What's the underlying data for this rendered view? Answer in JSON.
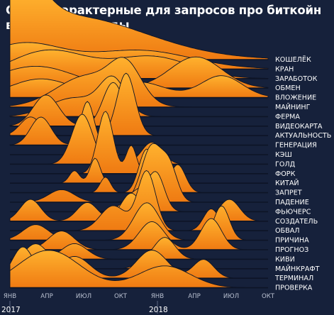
{
  "title_line1": "Слова, характерные для запросов про биткойн",
  "title_line2": "в разные периоды",
  "colors": {
    "background": "#16213b",
    "fill_top": "#ffb22e",
    "fill_bottom": "#ef7a12",
    "separator": "#0d1426",
    "text": "#ffffff"
  },
  "chart_data": {
    "type": "area",
    "subtype": "ridgeline",
    "x_ticks": [
      "ЯНВ",
      "АПР",
      "ИЮЛ",
      "ОКТ",
      "ЯНВ",
      "АПР",
      "ИЮЛ",
      "ОКТ"
    ],
    "year_labels": [
      {
        "label": "2017",
        "tick_index": 0
      },
      {
        "label": "2018",
        "tick_index": 4
      }
    ],
    "series": [
      {
        "name": "КОШЕЛЁК",
        "peaks": [
          [
            0.02,
            1.0,
            0.09
          ],
          [
            0.22,
            0.7,
            0.3
          ]
        ]
      },
      {
        "name": "КРАН",
        "peaks": [
          [
            0.05,
            0.4,
            0.15
          ],
          [
            0.5,
            0.3,
            0.2
          ]
        ]
      },
      {
        "name": "ЗАРАБОТОК",
        "peaks": [
          [
            0.15,
            0.45,
            0.15
          ],
          [
            0.55,
            0.35,
            0.15
          ]
        ]
      },
      {
        "name": "ОБМЕН",
        "peaks": [
          [
            0.1,
            0.35,
            0.15
          ],
          [
            0.72,
            0.5,
            0.1
          ]
        ]
      },
      {
        "name": "ВЛОЖЕНИЕ",
        "peaks": [
          [
            0.12,
            0.3,
            0.12
          ],
          [
            0.5,
            0.25,
            0.1
          ],
          [
            0.82,
            0.35,
            0.08
          ]
        ]
      },
      {
        "name": "МАЙНИНГ",
        "peaks": [
          [
            0.3,
            0.5,
            0.12
          ],
          [
            0.45,
            0.55,
            0.06
          ]
        ]
      },
      {
        "name": "ФЕРМА",
        "peaks": [
          [
            0.25,
            0.3,
            0.1
          ],
          [
            0.4,
            0.55,
            0.05
          ]
        ]
      },
      {
        "name": "ВИДЕОКАРТА",
        "peaks": [
          [
            0.14,
            0.5,
            0.05
          ],
          [
            0.4,
            0.7,
            0.04
          ]
        ]
      },
      {
        "name": "АКТУАЛЬНОСТЬ",
        "peaks": [
          [
            0.08,
            0.3,
            0.04
          ],
          [
            0.45,
            1.0,
            0.035
          ]
        ]
      },
      {
        "name": "ГЕНЕРАЦИЯ",
        "peaks": [
          [
            0.12,
            0.45,
            0.04
          ],
          [
            0.3,
            0.7,
            0.025
          ]
        ]
      },
      {
        "name": "КЭШ",
        "peaks": [
          [
            0.37,
            0.4,
            0.02
          ]
        ]
      },
      {
        "name": "ГОЛД",
        "peaks": [
          [
            0.28,
            0.8,
            0.04
          ],
          [
            0.55,
            0.35,
            0.04
          ]
        ]
      },
      {
        "name": "ФОРК",
        "peaks": [
          [
            0.37,
            1.0,
            0.03
          ],
          [
            0.47,
            0.45,
            0.02
          ]
        ]
      },
      {
        "name": "КИТАЙ",
        "peaks": [
          [
            0.25,
            0.2,
            0.02
          ],
          [
            0.33,
            0.4,
            0.02
          ],
          [
            0.55,
            0.5,
            0.02
          ]
        ]
      },
      {
        "name": "ЗАПРЕТ",
        "peaks": [
          [
            0.37,
            0.25,
            0.02
          ],
          [
            0.53,
            0.7,
            0.03
          ],
          [
            0.65,
            0.45,
            0.03
          ]
        ]
      },
      {
        "name": "ПАДЕНИЕ",
        "peaks": [
          [
            0.2,
            0.2,
            0.05
          ],
          [
            0.55,
            0.9,
            0.04
          ],
          [
            0.62,
            0.5,
            0.03
          ]
        ]
      },
      {
        "name": "ФЬЮЧЕРС",
        "peaks": [
          [
            0.5,
            0.35,
            0.05
          ],
          [
            0.57,
            0.5,
            0.03
          ]
        ]
      },
      {
        "name": "СОЗДАТЕЛЬ",
        "peaks": [
          [
            0.08,
            0.35,
            0.04
          ],
          [
            0.3,
            0.3,
            0.04
          ],
          [
            0.47,
            0.45,
            0.04
          ],
          [
            0.85,
            0.35,
            0.04
          ]
        ]
      },
      {
        "name": "ОБВАЛ",
        "peaks": [
          [
            0.4,
            0.4,
            0.05
          ],
          [
            0.53,
            0.95,
            0.035
          ],
          [
            0.78,
            0.35,
            0.03
          ]
        ]
      },
      {
        "name": "ПРИЧИНА",
        "peaks": [
          [
            0.1,
            0.25,
            0.05
          ],
          [
            0.53,
            0.6,
            0.05
          ],
          [
            0.82,
            0.55,
            0.03
          ]
        ]
      },
      {
        "name": "ПРОГНОЗ",
        "peaks": [
          [
            0.2,
            0.3,
            0.05
          ],
          [
            0.55,
            0.45,
            0.05
          ],
          [
            0.78,
            0.5,
            0.04
          ]
        ]
      },
      {
        "name": "КИВИ",
        "peaks": [
          [
            0.25,
            0.25,
            0.05
          ],
          [
            0.6,
            0.35,
            0.04
          ]
        ]
      },
      {
        "name": "МАЙНКРАФТ",
        "peaks": [
          [
            0.1,
            0.4,
            0.05
          ],
          [
            0.55,
            0.3,
            0.04
          ]
        ]
      },
      {
        "name": "ТЕРМИНАЛ",
        "peaks": [
          [
            0.05,
            0.5,
            0.04
          ],
          [
            0.25,
            0.35,
            0.06
          ],
          [
            0.55,
            0.45,
            0.06
          ],
          [
            0.75,
            0.3,
            0.04
          ]
        ]
      },
      {
        "name": "ПРОВЕРКА",
        "peaks": [
          [
            0.15,
            0.6,
            0.12
          ],
          [
            0.6,
            0.35,
            0.1
          ]
        ]
      }
    ]
  }
}
